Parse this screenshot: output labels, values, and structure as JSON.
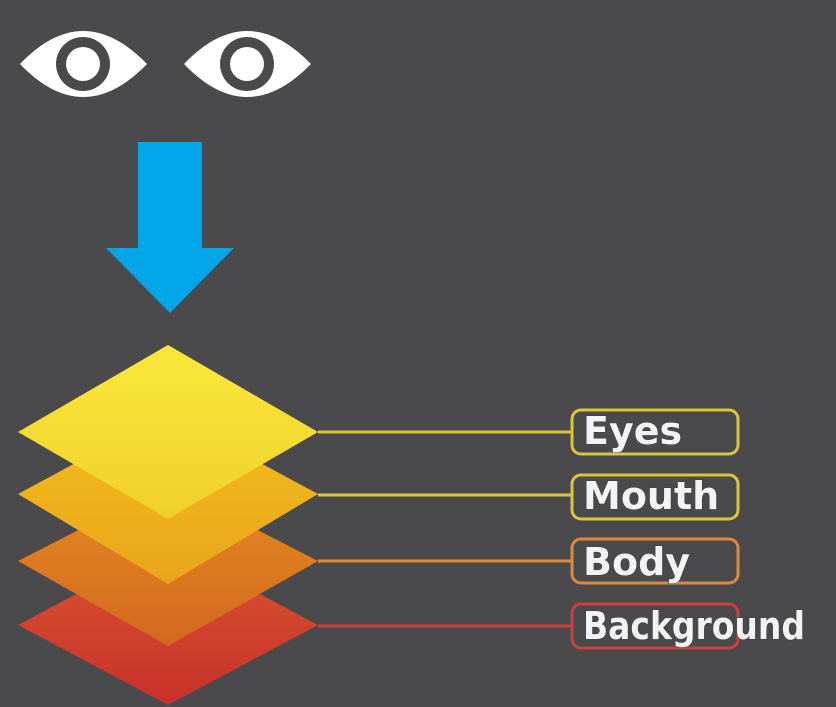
{
  "viewer": {
    "left_eye_icon": "eye-icon",
    "right_eye_icon": "eye-icon",
    "direction_icon": "arrow-down-icon",
    "arrow_color": "#00a6e8",
    "eye_color": "#ffffff"
  },
  "layers": [
    {
      "label": "Eyes",
      "color": "#f4d530",
      "line_color": "#ddc53a"
    },
    {
      "label": "Mouth",
      "color": "#eeb21b",
      "line_color": "#ddc53a"
    },
    {
      "label": "Body",
      "color": "#d9751f",
      "line_color": "#d98a3a"
    },
    {
      "label": "Background",
      "color": "#d03a2a",
      "line_color": "#c8433b"
    }
  ]
}
